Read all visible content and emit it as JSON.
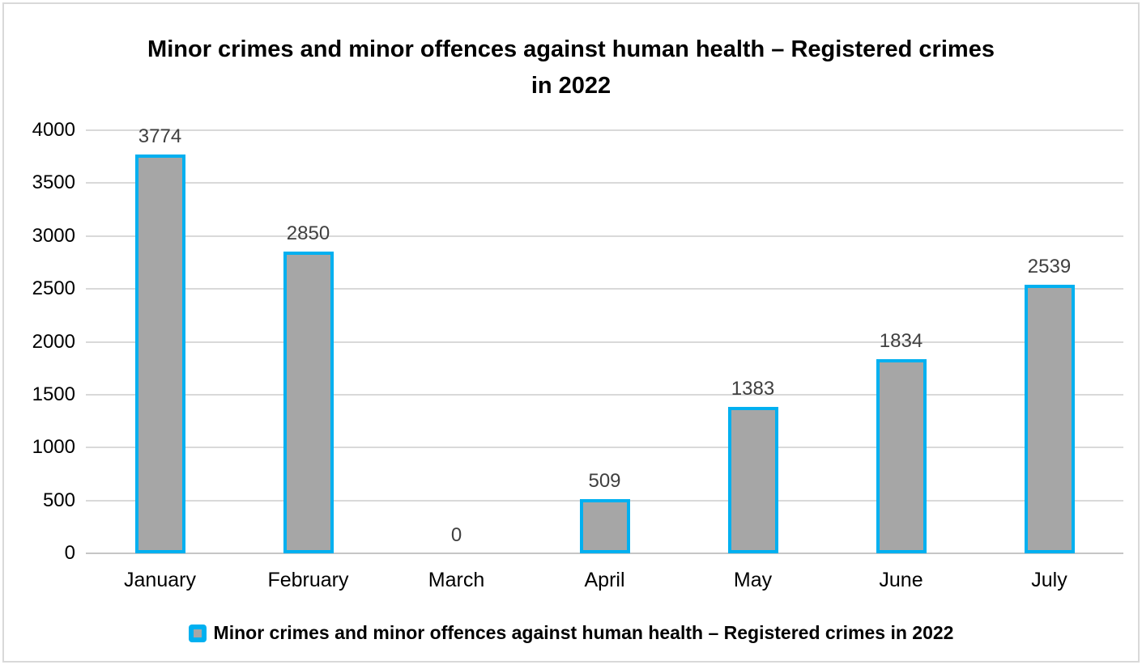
{
  "chart_data": {
    "type": "bar",
    "title": "Minor crimes and minor offences against human health – Registered crimes in 2022",
    "categories": [
      "January",
      "February",
      "March",
      "April",
      "May",
      "June",
      "July"
    ],
    "values": [
      3774,
      2850,
      0,
      509,
      1383,
      1834,
      2539
    ],
    "ylim": [
      0,
      4000
    ],
    "y_tick_step": 500,
    "y_tick_labels": [
      "0",
      "500",
      "1000",
      "1500",
      "2000",
      "2500",
      "3000",
      "3500",
      "4000"
    ],
    "show_data_labels": true,
    "grid": true,
    "legend": {
      "label": "Minor crimes and minor offences against human health – Registered crimes in 2022",
      "position": "bottom"
    },
    "colors": {
      "bar_fill": "#a6a6a6",
      "bar_border": "#00b0f0",
      "gridline": "#d9d9d9",
      "axis_line": "#c6c6c6",
      "data_label": "#404040",
      "tick_label": "#000000",
      "frame_border": "#d9d9d9"
    }
  }
}
